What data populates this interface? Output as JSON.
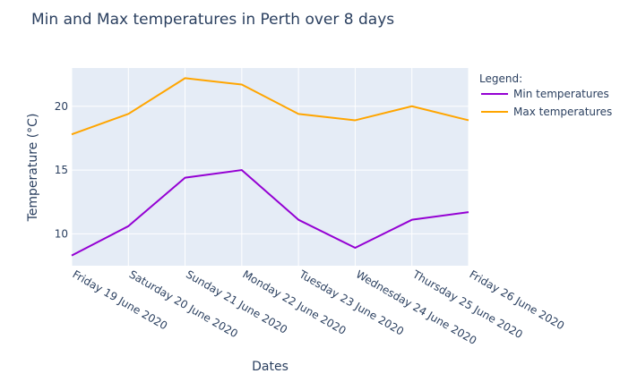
{
  "chart_data": {
    "type": "line",
    "title": "Min and Max temperatures in Perth over 8 days",
    "xlabel": "Dates",
    "ylabel": "Temperature (°C)",
    "categories": [
      "Friday 19 June 2020",
      "Saturday 20 June 2020",
      "Sunday 21 June 2020",
      "Monday 22 June 2020",
      "Tuesday 23 June 2020",
      "Wednesday 24 June 2020",
      "Thursday 25 June 2020",
      "Friday 26 June 2020"
    ],
    "series": [
      {
        "name": "Min temperatures",
        "color": "#9400D3",
        "values": [
          8.3,
          10.6,
          14.4,
          15.0,
          11.1,
          8.9,
          11.1,
          11.7
        ]
      },
      {
        "name": "Max temperatures",
        "color": "#FFA500",
        "values": [
          17.8,
          19.4,
          22.2,
          21.7,
          19.4,
          18.9,
          20.0,
          18.9
        ]
      }
    ],
    "ylim": [
      7.5,
      23
    ],
    "yticks": [
      10,
      15,
      20
    ],
    "grid": true,
    "legend": {
      "title": "Legend:",
      "position": "right"
    },
    "plot_background": "#E5ECF6",
    "grid_color": "#FFFFFF"
  }
}
